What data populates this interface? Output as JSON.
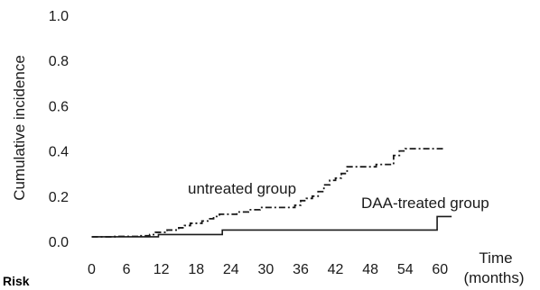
{
  "chart_data": {
    "type": "line",
    "ylabel": "Cumulative incidence",
    "xlabel_line1": "Time",
    "xlabel_line2": "(months)",
    "row_label": "Risk",
    "xlim": [
      0,
      62
    ],
    "ylim": [
      0,
      1.0
    ],
    "x_ticks": [
      "0",
      "6",
      "12",
      "18",
      "24",
      "30",
      "36",
      "42",
      "48",
      "54",
      "60"
    ],
    "y_ticks": [
      "0.0",
      "0.2",
      "0.4",
      "0.6",
      "0.8",
      "1.0"
    ],
    "series": [
      {
        "name": "untreated group",
        "style": "dashdot",
        "color": "#1a1a1a",
        "steps": [
          [
            0,
            0.02
          ],
          [
            4,
            0.022
          ],
          [
            8,
            0.025
          ],
          [
            10,
            0.03
          ],
          [
            11,
            0.04
          ],
          [
            13,
            0.05
          ],
          [
            15,
            0.06
          ],
          [
            16,
            0.07
          ],
          [
            17,
            0.08
          ],
          [
            19,
            0.09
          ],
          [
            20,
            0.1
          ],
          [
            21,
            0.11
          ],
          [
            22,
            0.12
          ],
          [
            25,
            0.13
          ],
          [
            27,
            0.14
          ],
          [
            29,
            0.15
          ],
          [
            32,
            0.15
          ],
          [
            35,
            0.16
          ],
          [
            36,
            0.18
          ],
          [
            37,
            0.19
          ],
          [
            38,
            0.2
          ],
          [
            39,
            0.22
          ],
          [
            40,
            0.25
          ],
          [
            41,
            0.27
          ],
          [
            42,
            0.28
          ],
          [
            43,
            0.3
          ],
          [
            44,
            0.33
          ],
          [
            48,
            0.33
          ],
          [
            49,
            0.34
          ],
          [
            51,
            0.34
          ],
          [
            52,
            0.38
          ],
          [
            53,
            0.4
          ],
          [
            54,
            0.41
          ],
          [
            60.5,
            0.41
          ]
        ]
      },
      {
        "name": "DAA-treated group",
        "style": "solid",
        "color": "#1a1a1a",
        "steps": [
          [
            0,
            0.02
          ],
          [
            11,
            0.02
          ],
          [
            11.5,
            0.03
          ],
          [
            22.5,
            0.03
          ],
          [
            22.5,
            0.05
          ],
          [
            59.5,
            0.05
          ],
          [
            59.5,
            0.11
          ],
          [
            62,
            0.11
          ]
        ]
      }
    ]
  }
}
